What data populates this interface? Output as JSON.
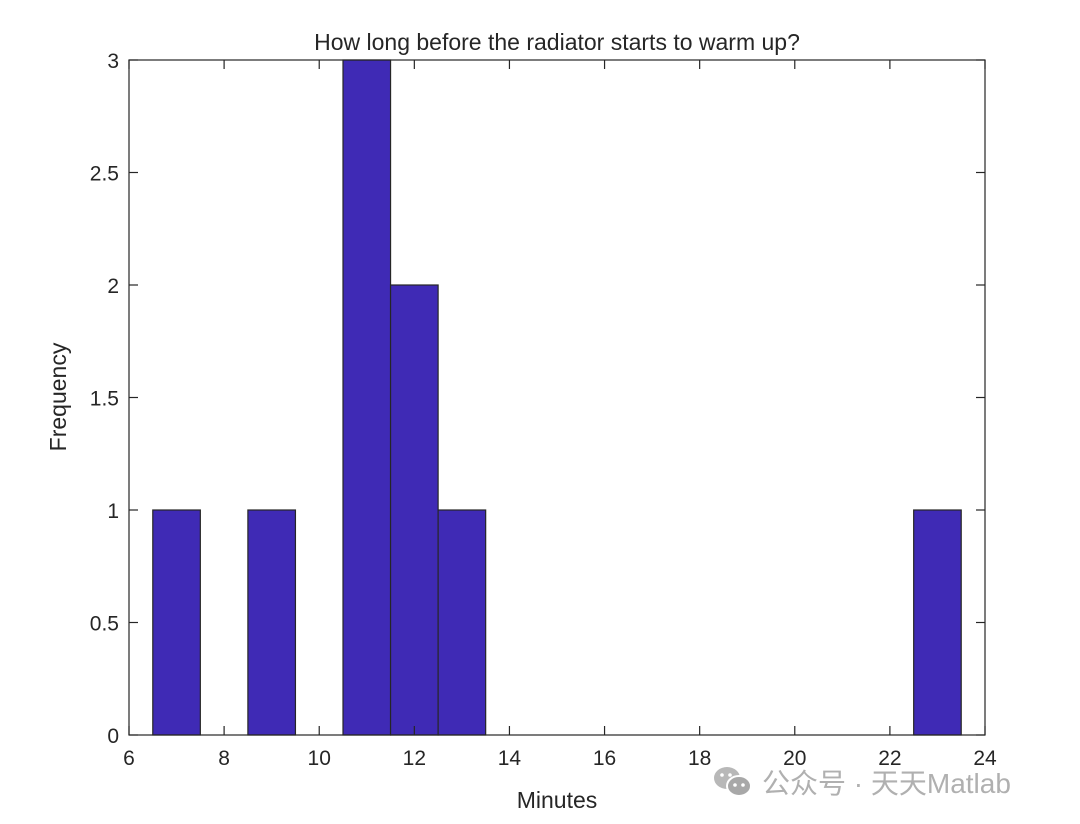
{
  "chart_data": {
    "type": "bar",
    "subtype": "histogram",
    "title": "How long before the radiator starts to warm up?",
    "xlabel": "Minutes",
    "ylabel": "Frequency",
    "xlim": [
      6,
      24
    ],
    "ylim": [
      0,
      3
    ],
    "xticks": [
      "6",
      "8",
      "10",
      "12",
      "14",
      "16",
      "18",
      "20",
      "22",
      "24"
    ],
    "yticks": [
      "0",
      "0.5",
      "1",
      "1.5",
      "2",
      "2.5",
      "3"
    ],
    "bin_width": 1,
    "bin_centers": [
      7,
      8,
      9,
      10,
      11,
      12,
      13,
      14,
      15,
      16,
      17,
      18,
      19,
      20,
      21,
      22,
      23
    ],
    "values": [
      1,
      0,
      1,
      0,
      3,
      2,
      1,
      0,
      0,
      0,
      0,
      0,
      0,
      0,
      0,
      0,
      1
    ],
    "bar_color": "#3f2ab5",
    "edge_color": "#262626",
    "grid": false
  },
  "watermark": {
    "text": "公众号 · 天天Matlab",
    "icon": "wechat-icon"
  }
}
